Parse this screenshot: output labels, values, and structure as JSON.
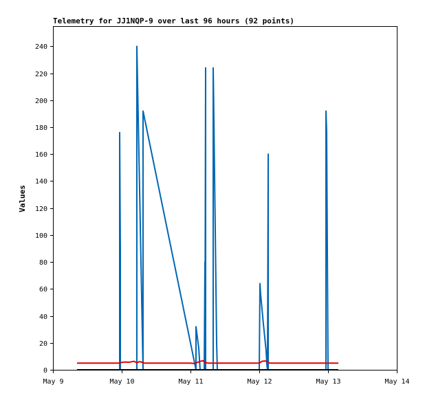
{
  "chart_data": {
    "type": "line",
    "title": "Telemetry for JJ1NQP-9 over last 96 hours (92 points)",
    "xlabel": "",
    "ylabel": "Values",
    "x_tick_labels": [
      "May 9",
      "May 10",
      "May 11",
      "May 12",
      "May 13",
      "May 14"
    ],
    "x_range_days": [
      9.0,
      14.0
    ],
    "y_ticks": [
      0,
      20,
      40,
      60,
      80,
      100,
      120,
      140,
      160,
      180,
      200,
      220,
      240
    ],
    "ylim": [
      0,
      255
    ],
    "grid": false,
    "series": [
      {
        "color": "#0066b3",
        "x": [
          9.97,
          9.97,
          9.98,
          9.98,
          10.22,
          10.22,
          10.31,
          10.31,
          11.08,
          11.08,
          11.1,
          11.12,
          11.13,
          11.14,
          11.2,
          11.21,
          11.21,
          11.22,
          11.22,
          11.33,
          11.33,
          11.34,
          11.35,
          11.36,
          11.37,
          11.38,
          11.39,
          11.4,
          12.0,
          12.01,
          12.02,
          12.04,
          12.06,
          12.08,
          12.1,
          12.11,
          12.12,
          12.13,
          12.13,
          12.97,
          12.97,
          12.98,
          13.0
        ],
        "values": [
          0,
          176,
          88,
          0,
          0,
          240,
          0,
          192,
          0,
          32,
          24,
          16,
          8,
          0,
          0,
          80,
          0,
          224,
          0,
          0,
          224,
          187,
          144,
          104,
          62,
          20,
          0,
          0,
          0,
          64,
          56,
          45,
          34,
          24,
          14,
          4,
          0,
          160,
          0,
          0,
          192,
          176,
          0
        ]
      },
      {
        "color": "#000000",
        "x": [
          9.35,
          13.15
        ],
        "values": [
          0,
          0
        ]
      },
      {
        "color": "#e00000",
        "x": [
          9.35,
          9.97,
          10.0,
          10.05,
          10.1,
          10.15,
          10.18,
          10.22,
          10.26,
          10.3,
          10.33,
          11.0,
          11.05,
          11.1,
          11.14,
          11.18,
          11.21,
          11.25,
          12.0,
          12.04,
          12.08,
          12.12,
          12.15,
          13.15
        ],
        "values": [
          5,
          5,
          5.5,
          5.8,
          5.6,
          6,
          6.3,
          5.2,
          6.1,
          5.5,
          5,
          5,
          4.7,
          5.5,
          6.2,
          6.8,
          5.6,
          5,
          5,
          6.3,
          6.6,
          6.1,
          5,
          5
        ]
      }
    ]
  }
}
